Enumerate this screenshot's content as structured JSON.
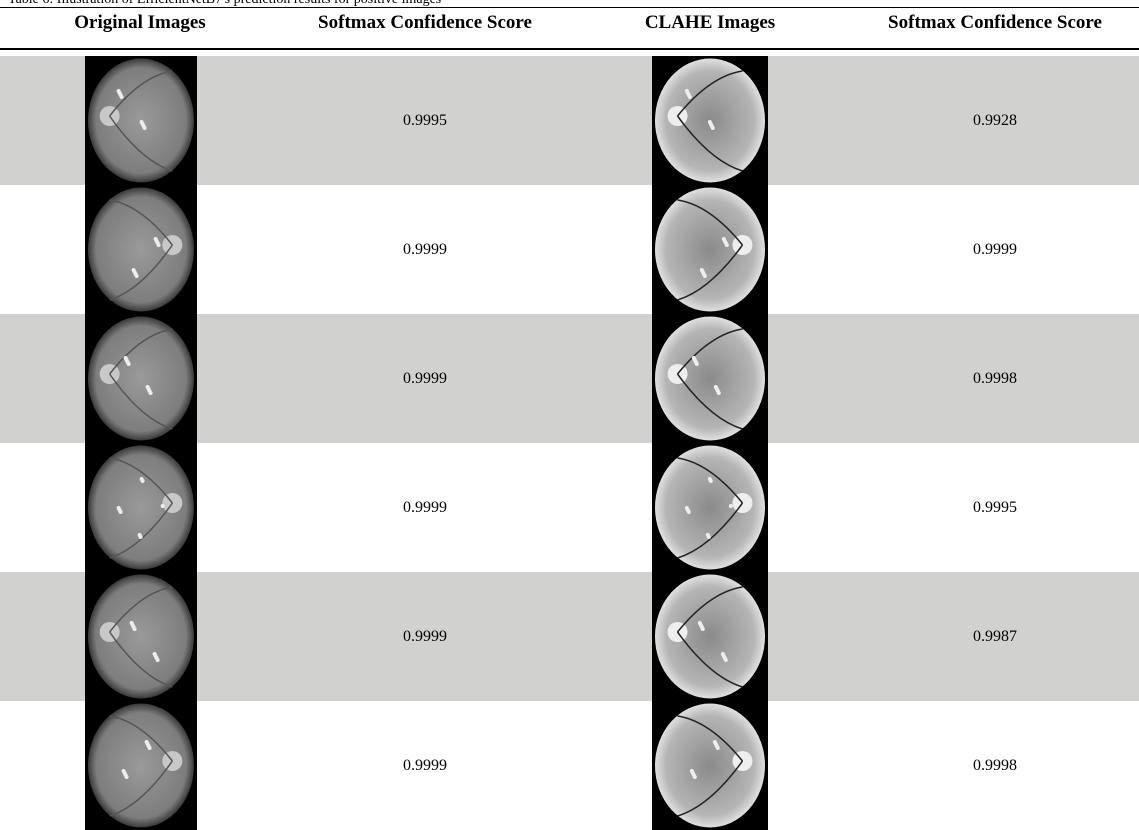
{
  "caption": "Table 6: Illustration of EfficientNetB7's prediction results for positive images",
  "table": {
    "columns": [
      "Original Images",
      "Softmax Confidence Score",
      "CLAHE Images",
      "Softmax Confidence Score"
    ],
    "rows": [
      [
        "0.9995",
        "0.9928"
      ],
      [
        "0.9999",
        "0.9999"
      ],
      [
        "0.9999",
        "0.9998"
      ],
      [
        "0.9999",
        "0.9995"
      ],
      [
        "0.9999",
        "0.9987"
      ],
      [
        "0.9999",
        "0.9998"
      ]
    ]
  }
}
